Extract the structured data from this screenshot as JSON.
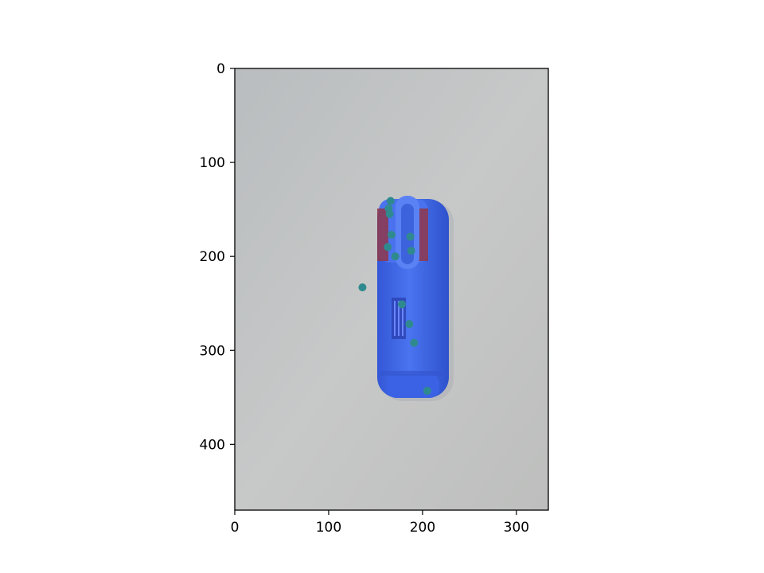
{
  "chart_data": {
    "type": "scatter",
    "title": "",
    "xlabel": "",
    "ylabel": "",
    "background": "photograph of a blue highlighter marker on a light grey surface",
    "xlim": [
      0,
      334
    ],
    "ylim": [
      470,
      0
    ],
    "y_inverted": true,
    "grid": false,
    "x_ticks": [
      0,
      100,
      200,
      300
    ],
    "y_ticks": [
      0,
      100,
      200,
      300,
      400
    ],
    "series": [
      {
        "marker_color": "#2f8a8f",
        "x": [
          166,
          164,
          165,
          167,
          187,
          163,
          188,
          171,
          136,
          178,
          186,
          191,
          205
        ],
        "y": [
          141,
          149,
          155,
          177,
          179,
          190,
          194,
          200,
          233,
          251,
          272,
          292,
          343
        ]
      }
    ]
  },
  "colors": {
    "surface": "#c3c4c4",
    "marker_body": "#3d66e6",
    "marker_cap_band": "#8b3a52",
    "points": "#2f8a8f"
  }
}
